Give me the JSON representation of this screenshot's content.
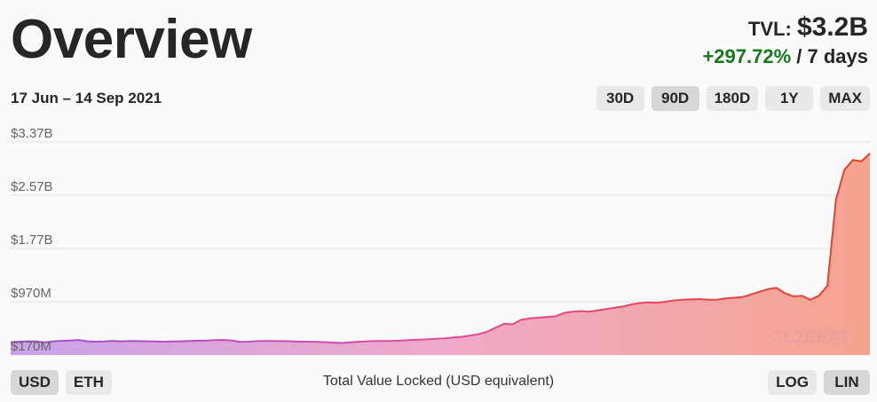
{
  "header": {
    "title": "Overview",
    "tvl_label": "TVL:",
    "tvl_value": "$3.2B",
    "change": "+297.72%",
    "change_period": "/ 7 days",
    "date_range": "17 Jun – 14 Sep 2021"
  },
  "range_buttons": [
    {
      "label": "30D",
      "active": false
    },
    {
      "label": "90D",
      "active": true
    },
    {
      "label": "180D",
      "active": false
    },
    {
      "label": "1Y",
      "active": false
    },
    {
      "label": "MAX",
      "active": false
    }
  ],
  "currency_buttons": [
    {
      "label": "USD",
      "active": true
    },
    {
      "label": "ETH",
      "active": false
    }
  ],
  "scale_buttons": [
    {
      "label": "LOG",
      "active": false
    },
    {
      "label": "LIN",
      "active": true
    }
  ],
  "caption": "Total Value Locked (USD equivalent)",
  "watermark": "L2BEAT",
  "colors": {
    "gradient_start": "#9b4fd6",
    "gradient_end": "#e8401f",
    "positive": "#177a1a",
    "grid": "#e3e3e3"
  },
  "chart_data": {
    "type": "area",
    "x_start": "2021-06-17",
    "x_end": "2021-09-14",
    "ylim_millions": [
      170,
      3370
    ],
    "y_tick_values_millions": [
      170,
      970,
      1770,
      2570,
      3370
    ],
    "y_tick_labels": [
      "$170M",
      "$970M",
      "$1.77B",
      "$2.57B",
      "$3.37B"
    ],
    "grid": true,
    "values_millions": [
      360,
      370,
      375,
      372,
      358,
      375,
      382,
      388,
      395,
      375,
      370,
      372,
      382,
      372,
      380,
      378,
      375,
      372,
      370,
      372,
      375,
      380,
      385,
      388,
      392,
      395,
      388,
      368,
      370,
      378,
      380,
      380,
      378,
      375,
      370,
      370,
      368,
      362,
      355,
      350,
      360,
      370,
      375,
      380,
      380,
      382,
      388,
      395,
      400,
      405,
      412,
      420,
      432,
      442,
      462,
      482,
      520,
      580,
      640,
      630,
      700,
      720,
      730,
      740,
      750,
      800,
      820,
      830,
      820,
      840,
      860,
      880,
      900,
      930,
      950,
      960,
      955,
      970,
      990,
      1000,
      1005,
      1010,
      1000,
      1000,
      1020,
      1030,
      1040,
      1080,
      1120,
      1160,
      1180,
      1100,
      1050,
      1060,
      1000,
      1060,
      1210,
      2500,
      2950,
      3100,
      3080,
      3200
    ]
  }
}
